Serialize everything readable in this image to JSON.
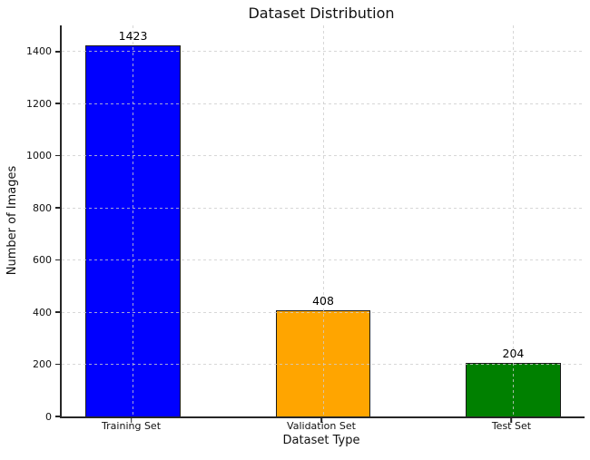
{
  "figure": {
    "background": "#ffffff",
    "spine_color": "#262626"
  },
  "chart_data": {
    "type": "bar",
    "title": "Dataset Distribution",
    "xlabel": "Dataset Type",
    "ylabel": "Number of Images",
    "categories": [
      "Training Set",
      "Validation Set",
      "Test Set"
    ],
    "values": [
      1423,
      408,
      204
    ],
    "value_labels": [
      "1423",
      "408",
      "204"
    ],
    "bar_colors": [
      "#0000ff",
      "#ffa500",
      "#008000"
    ],
    "bar_edge_color": "#1a1a1a",
    "bar_width": 0.5,
    "xlim": [
      -0.375,
      2.375
    ],
    "ylim": [
      0,
      1500
    ],
    "yticks": [
      0,
      200,
      400,
      600,
      800,
      1000,
      1200,
      1400
    ],
    "grid": "dashed, light gray, horizontal at yticks and vertical at bar centers, drawn over bars",
    "grid_color": "#d3d3d3",
    "legend": "none"
  }
}
